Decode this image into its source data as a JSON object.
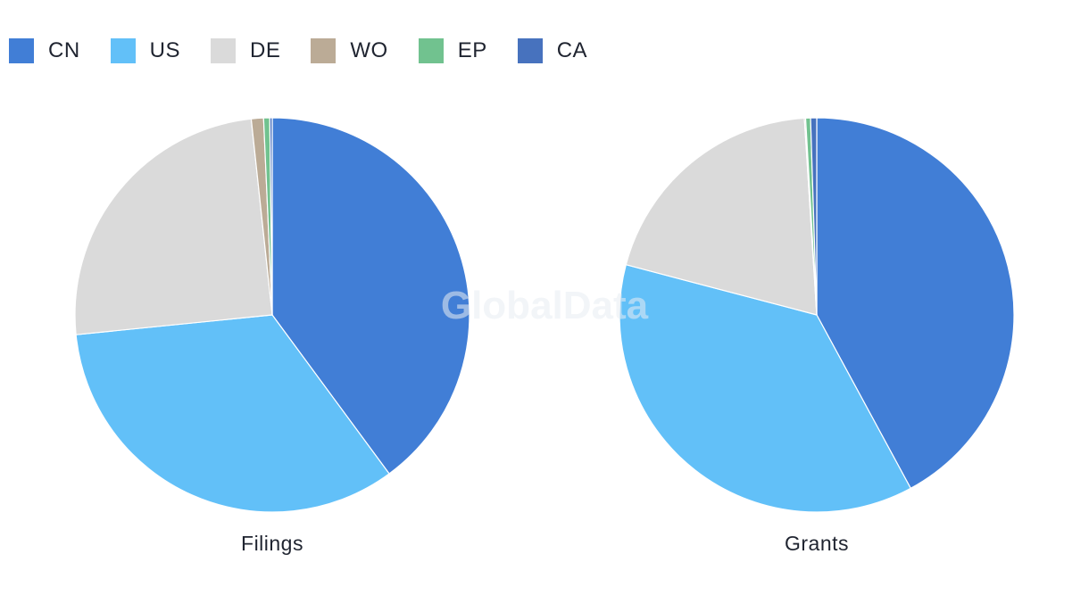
{
  "legend": [
    {
      "label": "CN",
      "color": "#417ed6"
    },
    {
      "label": "US",
      "color": "#62c0f8"
    },
    {
      "label": "DE",
      "color": "#dadada"
    },
    {
      "label": "WO",
      "color": "#bbab96"
    },
    {
      "label": "EP",
      "color": "#71c28f"
    },
    {
      "label": "CA",
      "color": "#4772be"
    }
  ],
  "watermark": "GlobalData",
  "chart_data": [
    {
      "type": "pie",
      "title": "Filings",
      "categories": [
        "CN",
        "US",
        "DE",
        "WO",
        "EP",
        "CA"
      ],
      "values": [
        39.9,
        33.5,
        24.9,
        1.0,
        0.5,
        0.2
      ]
    },
    {
      "type": "pie",
      "title": "Grants",
      "categories": [
        "CN",
        "US",
        "DE",
        "WO",
        "EP",
        "CA"
      ],
      "values": [
        42.1,
        37.0,
        19.9,
        0.1,
        0.4,
        0.5
      ]
    }
  ]
}
